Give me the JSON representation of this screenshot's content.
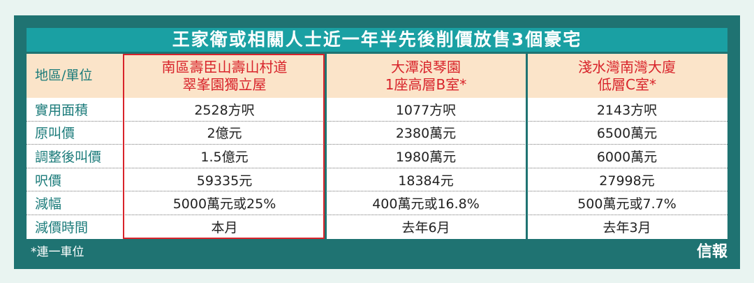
{
  "title": "王家衛或相關人士近一年半先後削價放售3個豪宅",
  "table": {
    "header": [
      "地區/單位",
      [
        "南區壽臣山壽山村道",
        "翠峯園獨立屋"
      ],
      [
        "大潭浪琴園",
        "1座高層B室*"
      ],
      [
        "淺水灣南灣大廈",
        "低層C室*"
      ]
    ],
    "rows": [
      [
        "實用面積",
        "2528方呎",
        "1077方呎",
        "2143方呎"
      ],
      [
        "原叫價",
        "2億元",
        "2380萬元",
        "6500萬元"
      ],
      [
        "調整後叫價",
        "1.5億元",
        "1980萬元",
        "6000萬元"
      ],
      [
        "呎價",
        "59335元",
        "18384元",
        "27998元"
      ],
      [
        "減幅",
        "5000萬元或25%",
        "400萬元或16.8%",
        "500萬元或7.7%"
      ],
      [
        "減價時間",
        "本月",
        "去年6月",
        "去年3月"
      ]
    ]
  },
  "footnote": "*連一車位",
  "logo": "信報"
}
